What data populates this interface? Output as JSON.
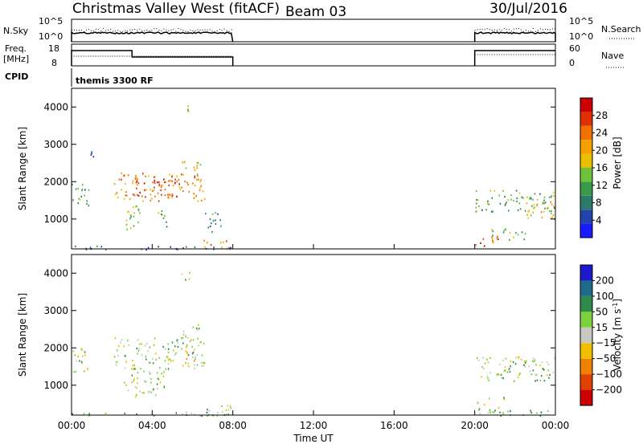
{
  "header": {
    "title": "Christmas Valley West (fitACF)",
    "beam": "Beam 03",
    "date": "30/Jul/2016"
  },
  "noise_panel": {
    "left_label": "N.Sky",
    "left_ticks": [
      "10^5",
      "10^0"
    ],
    "right_label": "N.Search",
    "right_ticks": [
      "10^5",
      "10^0"
    ]
  },
  "freq_panel": {
    "left_label_1": "Freq.",
    "left_label_2": "[MHz]",
    "left_ticks": [
      "18",
      "8"
    ],
    "right_label": "Nave",
    "right_ticks": [
      "60",
      "0"
    ],
    "cpid_label": "CPID",
    "cpid_text": "themis 3300 RF"
  },
  "chart_data": [
    {
      "type": "heatmap",
      "name": "power",
      "ylabel": "Slant Range [km]",
      "yticks": [
        "1000",
        "2000",
        "3000",
        "4000"
      ],
      "ylim": [
        200,
        4500
      ],
      "xlim_hours": [
        0,
        24
      ],
      "colorbar_label": "Power [dB]",
      "colorbar_ticks": [
        "4",
        "8",
        "12",
        "16",
        "20",
        "24",
        "28"
      ],
      "colorbar_range": [
        0,
        32
      ],
      "colors": [
        "#1a1aff",
        "#2244aa",
        "#2e7a6a",
        "#3a9a4a",
        "#6cc23a",
        "#e8c000",
        "#f5a000",
        "#f07000",
        "#e03000",
        "#cc0000"
      ],
      "regions": [
        {
          "t0": 0.0,
          "t1": 0.9,
          "r0": 1350,
          "r1": 2000,
          "level": 0.35
        },
        {
          "t0": 0.8,
          "t1": 1.3,
          "r0": 2650,
          "r1": 2900,
          "level": 0.15
        },
        {
          "t0": 2.1,
          "t1": 6.6,
          "r0": 1500,
          "r1": 2250,
          "level": 0.7
        },
        {
          "t0": 3.2,
          "t1": 5.4,
          "r0": 1600,
          "r1": 2100,
          "level": 0.9
        },
        {
          "t0": 5.3,
          "t1": 6.4,
          "r0": 2200,
          "r1": 2600,
          "level": 0.55
        },
        {
          "t0": 2.6,
          "t1": 3.4,
          "r0": 700,
          "r1": 1550,
          "level": 0.5
        },
        {
          "t0": 4.1,
          "t1": 4.7,
          "r0": 800,
          "r1": 1250,
          "level": 0.4
        },
        {
          "t0": 5.4,
          "t1": 5.9,
          "r0": 3750,
          "r1": 4050,
          "level": 0.55
        },
        {
          "t0": 6.6,
          "t1": 7.4,
          "r0": 650,
          "r1": 1250,
          "level": 0.25
        },
        {
          "t0": 6.5,
          "t1": 7.9,
          "r0": 200,
          "r1": 450,
          "level": 0.75
        },
        {
          "t0": 0.0,
          "t1": 7.9,
          "r0": 200,
          "r1": 300,
          "level": 0.2
        },
        {
          "t0": 20.0,
          "t1": 24.0,
          "r0": 1200,
          "r1": 1800,
          "level": 0.4
        },
        {
          "t0": 22.5,
          "t1": 24.0,
          "r0": 1000,
          "r1": 1500,
          "level": 0.6
        },
        {
          "t0": 20.0,
          "t1": 21.2,
          "r0": 250,
          "r1": 600,
          "level": 0.8
        },
        {
          "t0": 20.8,
          "t1": 22.5,
          "r0": 450,
          "r1": 750,
          "level": 0.4
        }
      ]
    },
    {
      "type": "heatmap",
      "name": "velocity",
      "ylabel": "Slant Range [km]",
      "yticks": [
        "1000",
        "2000",
        "3000",
        "4000"
      ],
      "ylim": [
        200,
        4500
      ],
      "xlim_hours": [
        0,
        24
      ],
      "xticks": [
        "00:00",
        "04:00",
        "08:00",
        "12:00",
        "16:00",
        "20:00",
        "00:00"
      ],
      "xlabel": "Time UT",
      "colorbar_label_main": "Velocity [m s",
      "colorbar_label_sup": "-1",
      "colorbar_label_end": "]",
      "colorbar_ticks": [
        "200",
        "100",
        "50",
        "15",
        "−15",
        "−50",
        "−100",
        "−200"
      ],
      "colors": [
        "#1a1acc",
        "#1f6a8a",
        "#2e8a4a",
        "#7cd23a",
        "#c8c8c0",
        "#f0c000",
        "#f08000",
        "#e04000",
        "#cc0000"
      ],
      "regions": [
        {
          "t0": 0.0,
          "t1": 0.9,
          "r0": 1350,
          "r1": 2000,
          "level": 0.45
        },
        {
          "t0": 2.1,
          "t1": 6.6,
          "r0": 1450,
          "r1": 2300,
          "level": 0.45
        },
        {
          "t0": 5.3,
          "t1": 6.4,
          "r0": 2200,
          "r1": 2650,
          "level": 0.45
        },
        {
          "t0": 2.6,
          "t1": 4.6,
          "r0": 700,
          "r1": 1500,
          "level": 0.45
        },
        {
          "t0": 5.6,
          "t1": 6.1,
          "r0": 1600,
          "r1": 1750,
          "level": 0.65
        },
        {
          "t0": 5.4,
          "t1": 5.9,
          "r0": 3750,
          "r1": 4050,
          "level": 0.45
        },
        {
          "t0": 6.5,
          "t1": 7.9,
          "r0": 200,
          "r1": 500,
          "level": 0.45
        },
        {
          "t0": 0.0,
          "t1": 7.9,
          "r0": 200,
          "r1": 300,
          "level": 0.3
        },
        {
          "t0": 20.0,
          "t1": 24.0,
          "r0": 1100,
          "r1": 1800,
          "level": 0.45
        },
        {
          "t0": 20.0,
          "t1": 21.5,
          "r0": 250,
          "r1": 700,
          "level": 0.45
        },
        {
          "t0": 21.0,
          "t1": 24.0,
          "r0": 200,
          "r1": 350,
          "level": 0.3
        }
      ]
    }
  ]
}
